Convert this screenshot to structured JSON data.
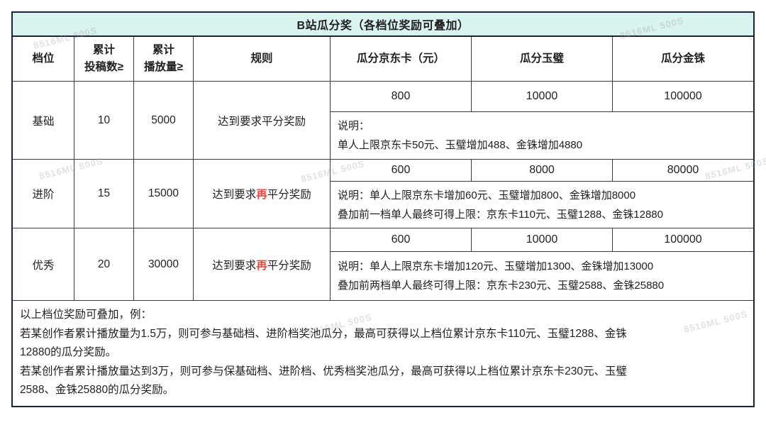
{
  "title": "B站瓜分奖（各档位奖励可叠加）",
  "watermark": {
    "text": "8516ML 500S"
  },
  "colors": {
    "title_bg": "#d9f3ef",
    "outer_border": "#1a2433",
    "grid_line": "#3a3a3a",
    "highlight_red": "#e8493e"
  },
  "columns": {
    "tier": "档位",
    "submissions_line1": "累计",
    "submissions_line2": "投稿数≥",
    "views_line1": "累计",
    "views_line2": "播放量≥",
    "rule": "规则",
    "jd_card": "瓜分京东卡（元）",
    "jade": "瓜分玉璧",
    "gold": "瓜分金铢"
  },
  "rows": [
    {
      "tier": "基础",
      "submissions": "10",
      "views": "5000",
      "rule_prefix": "达到要求",
      "rule_highlight": "",
      "rule_suffix": "平分奖励",
      "jd_card": "800",
      "jade": "10000",
      "gold": "100000",
      "note_line1": "说明：",
      "note_line2": "单人上限京东卡50元、玉璧增加488、金铢增加4880"
    },
    {
      "tier": "进阶",
      "submissions": "15",
      "views": "15000",
      "rule_prefix": "达到要求",
      "rule_highlight": "再",
      "rule_suffix": "平分奖励",
      "jd_card": "600",
      "jade": "8000",
      "gold": "80000",
      "note_line1": "说明：单人上限京东卡增加60元、玉璧增加800、金铢增加8000",
      "note_line2": "叠加前一档单人最终可得上限：京东卡110元、玉璧1288、金铢12880"
    },
    {
      "tier": "优秀",
      "submissions": "20",
      "views": "30000",
      "rule_prefix": "达到要求",
      "rule_highlight": "再",
      "rule_suffix": "平分奖励",
      "jd_card": "600",
      "jade": "10000",
      "gold": "100000",
      "note_line1": "说明：单人上限京东卡增加120元、玉璧增加1300、金铢增加13000",
      "note_line2": "叠加前两档单人最终可得上限：京东卡230元、玉璧2588、金铢25880"
    }
  ],
  "footer": {
    "lines": [
      "以上档位奖励可叠加，例：",
      "若某创作者累计播放量为1.5万，则可参与基础档、进阶档奖池瓜分，最高可获得以上档位累计京东卡110元、玉璧1288、金铢",
      "12880的瓜分奖励。",
      "若某创作者累计播放量达到3万，则可参与保基础档、进阶档、优秀档奖池瓜分，最高可获得以上档位累计京东卡230元、玉璧",
      "2588、金铢25880的瓜分奖励。"
    ]
  }
}
